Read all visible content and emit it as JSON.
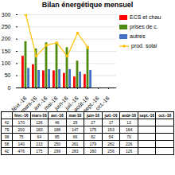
{
  "chart_data": {
    "type": "bar",
    "title": "Bilan énergétique mensuel",
    "categories": [
      "févr.-16",
      "mars-16",
      "avr.-16",
      "mai-16",
      "juin-16",
      "juil.-16",
      "août-16",
      "sept.-16",
      "oct.-16"
    ],
    "series": [
      {
        "name": "ECS et chau",
        "type": "bar",
        "color": "#FF0000",
        "values": [
          130,
          95,
          70,
          70,
          60,
          45,
          55,
          0,
          0
        ]
      },
      {
        "name": "prises de c.",
        "type": "bar",
        "color": "#4F8A10",
        "values": [
          190,
          160,
          185,
          185,
          165,
          110,
          170,
          0,
          0
        ]
      },
      {
        "name": "autres",
        "type": "bar",
        "color": "#4472C4",
        "values": [
          80,
          72,
          75,
          75,
          75,
          65,
          72,
          0,
          0
        ]
      },
      {
        "name": "prod. solai",
        "type": "line",
        "marker": "circle",
        "color": "#FFC000",
        "values": [
          300,
          130,
          175,
          185,
          130,
          225,
          165,
          null,
          null
        ]
      }
    ],
    "ylim": [
      0,
      300
    ],
    "yticks": [
      0,
      50,
      100,
      150,
      200,
      250,
      300
    ],
    "grid": true,
    "legend": "right",
    "table": {
      "columns": [
        "févr.-16",
        "mars-16",
        "avr.-16",
        "mai-16",
        "juin-16",
        "juil.-16",
        "août-16",
        "sept.-16",
        "oct.-16"
      ],
      "row_labels": [
        42,
        79,
        98,
        58,
        42
      ],
      "rows": [
        [
          170,
          126,
          46,
          29,
          27,
          17,
          13,
          null,
          null
        ],
        [
          200,
          183,
          188,
          147,
          175,
          153,
          164,
          null,
          null
        ],
        [
          75,
          64,
          85,
          66,
          82,
          54,
          70,
          null,
          null
        ],
        [
          140,
          213,
          250,
          261,
          179,
          282,
          226,
          null,
          null
        ],
        [
          476,
          175,
          299,
          283,
          260,
          256,
          126,
          null,
          null
        ]
      ]
    }
  }
}
